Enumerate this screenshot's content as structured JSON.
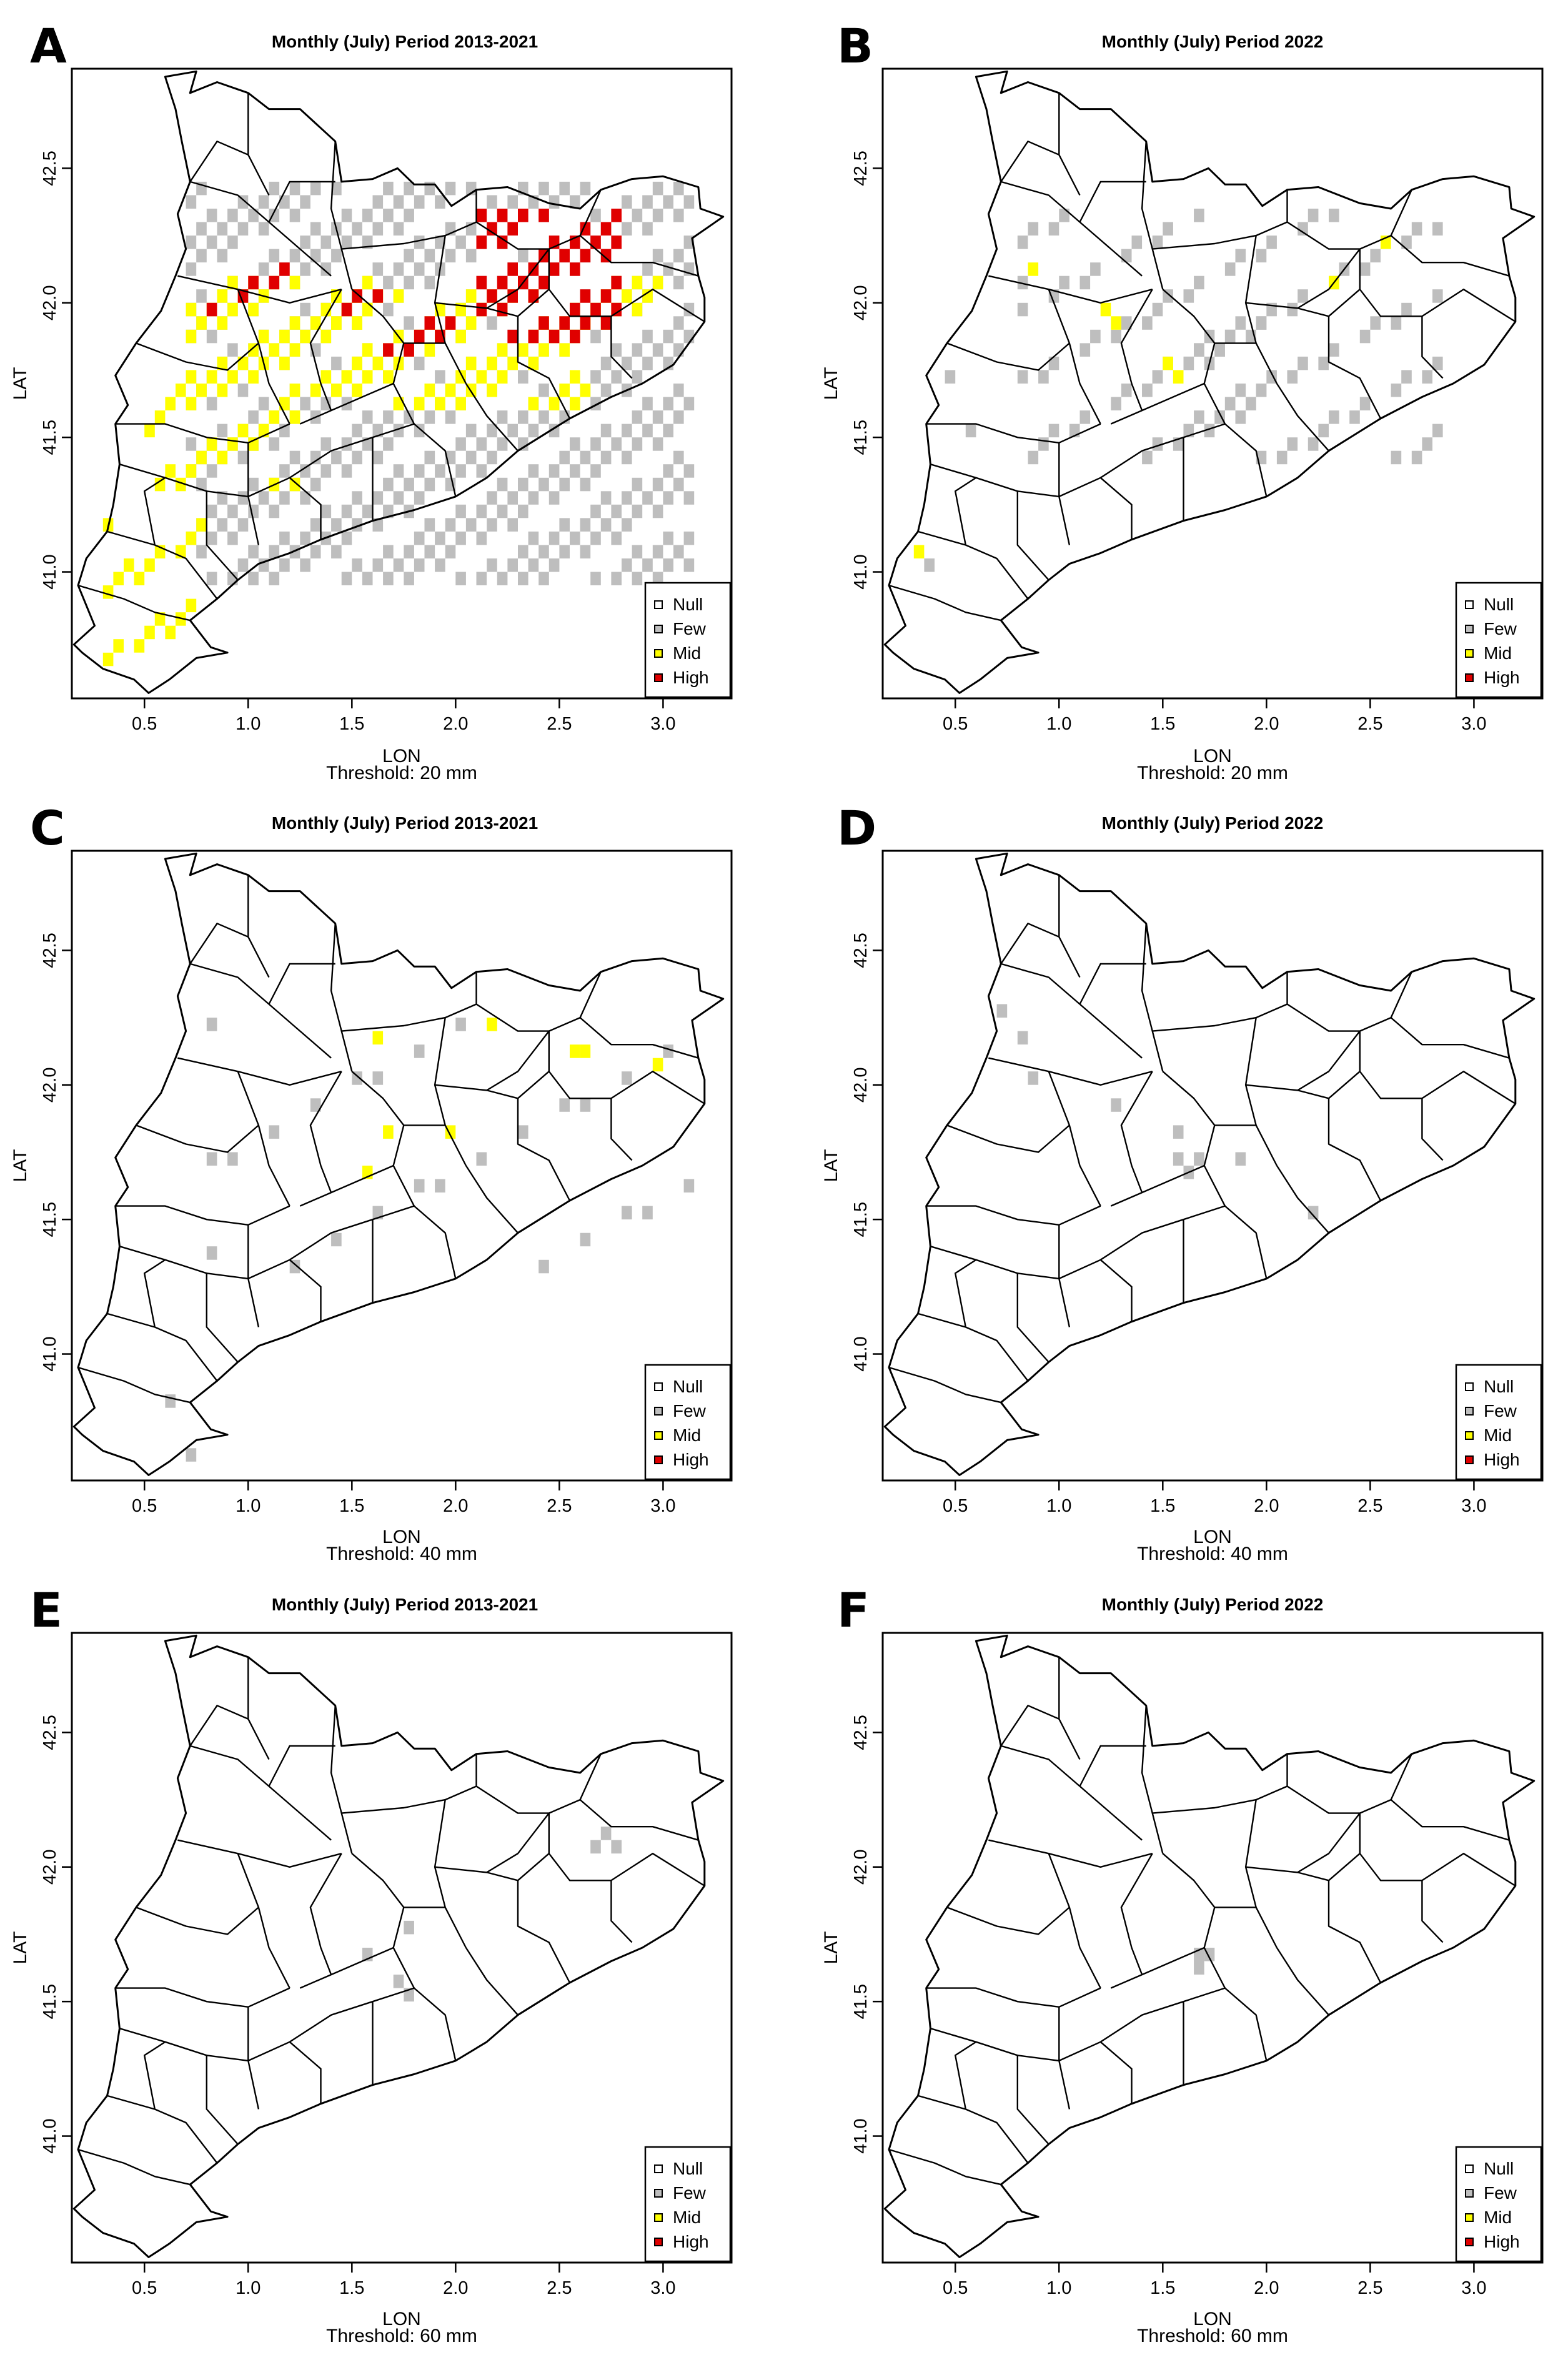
{
  "figure": {
    "panels": [
      {
        "label": "A",
        "title": "Monthly (July) Period 2013-2021",
        "xlabel": "LON",
        "ylabel": "LAT",
        "threshold": "Threshold: 20 mm"
      },
      {
        "label": "B",
        "title": "Monthly (July) Period 2022",
        "xlabel": "LON",
        "ylabel": "LAT",
        "threshold": "Threshold: 20 mm"
      },
      {
        "label": "C",
        "title": "Monthly (July) Period 2013-2021",
        "xlabel": "LON",
        "ylabel": "LAT",
        "threshold": "Threshold: 40 mm"
      },
      {
        "label": "D",
        "title": "Monthly (July) Period 2022",
        "xlabel": "LON",
        "ylabel": "LAT",
        "threshold": "Threshold: 40 mm"
      },
      {
        "label": "E",
        "title": "Monthly (July) Period 2013-2021",
        "xlabel": "LON",
        "ylabel": "LAT",
        "threshold": "Threshold: 60 mm"
      },
      {
        "label": "F",
        "title": "Monthly (July) Period 2022",
        "xlabel": "LON",
        "ylabel": "LAT",
        "threshold": "Threshold: 60 mm"
      }
    ],
    "x_ticks": [
      "0.5",
      "1.0",
      "1.5",
      "2.0",
      "2.5",
      "3.0"
    ],
    "y_ticks": [
      "41.0",
      "41.5",
      "42.0",
      "42.5"
    ],
    "legend": [
      {
        "label": "Null",
        "color": "#ffffff"
      },
      {
        "label": "Few",
        "color": "#bebebe"
      },
      {
        "label": "Mid",
        "color": "#ffff00"
      },
      {
        "label": "High",
        "color": "#e00000"
      }
    ]
  }
}
